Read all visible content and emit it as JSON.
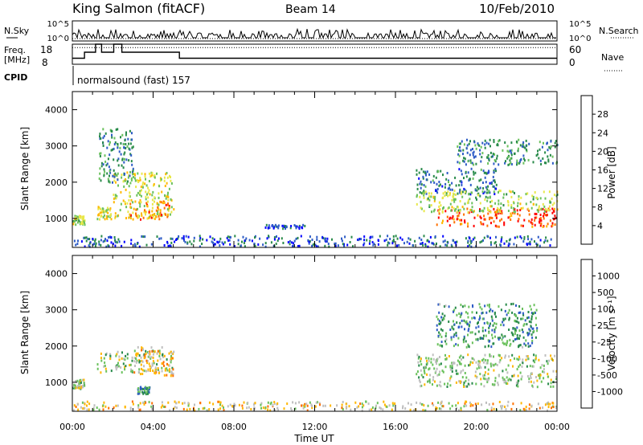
{
  "header": {
    "station": "King Salmon (fitACF)",
    "beam": "Beam 14",
    "date": "10/Feb/2010"
  },
  "side_labels": {
    "nsky": "N.Sky",
    "freq_line1": "Freq.",
    "freq_line2": "[MHz]",
    "cpid": "CPID",
    "nsearch": "N.Search",
    "nave": "Nave"
  },
  "cpid_text": "normalsound (fast) 157",
  "chart_data": [
    {
      "type": "line",
      "id": "noise-panel",
      "left_axis_ticks": [
        "10^5",
        "10^0"
      ],
      "right_axis_ticks": [
        "10^5",
        "10^0"
      ],
      "series": [
        {
          "name": "N.Sky"
        },
        {
          "name": "N.Search"
        }
      ]
    },
    {
      "type": "line",
      "id": "freq-panel",
      "left_axis_ticks": [
        "18",
        "8"
      ],
      "right_axis_ticks": [
        "60",
        "0"
      ],
      "ylim": [
        8,
        18
      ],
      "y2lim": [
        0,
        60
      ],
      "series": [
        {
          "name": "Freq. [MHz]",
          "x": [
            0.0,
            0.6,
            0.6,
            1.15,
            1.15,
            1.45,
            1.45,
            2.05,
            2.05,
            2.45,
            2.45,
            5.3,
            5.3,
            24.0
          ],
          "values": [
            11,
            11,
            14,
            14,
            18,
            18,
            14,
            14,
            18,
            18,
            14,
            14,
            11,
            11
          ]
        },
        {
          "name": "Nave",
          "y_const": 50
        }
      ]
    },
    {
      "type": "heatmap",
      "id": "power-panel",
      "xlabel": "",
      "ylabel": "Slant Range [km]",
      "ylim": [
        200,
        4500
      ],
      "y_ticks": [
        1000,
        2000,
        3000,
        4000
      ],
      "xlim": [
        0,
        24
      ],
      "colorbar": {
        "label": "Power [dB]",
        "ticks": [
          "28",
          "24",
          "20",
          "16",
          "12",
          "8",
          "4"
        ],
        "colors": [
          "#0000ff",
          "#2e5cc6",
          "#288a4a",
          "#6ac15c",
          "#e8e84a",
          "#ffb700",
          "#ff7000",
          "#ff0000"
        ]
      },
      "scatter_regions": [
        {
          "t": [
            0.0,
            0.6
          ],
          "r": [
            850,
            1100
          ],
          "level": 0.5
        },
        {
          "t": [
            1.2,
            1.9
          ],
          "r": [
            1000,
            1400
          ],
          "level": 0.55
        },
        {
          "t": [
            2.0,
            5.0
          ],
          "r": [
            1000,
            2300
          ],
          "level": 0.55
        },
        {
          "t": [
            2.8,
            4.8
          ],
          "r": [
            1000,
            1500
          ],
          "level": 0.78
        },
        {
          "t": [
            1.3,
            3.0
          ],
          "r": [
            2000,
            3500
          ],
          "level": 0.3
        },
        {
          "t": [
            9.5,
            11.5
          ],
          "r": [
            750,
            850
          ],
          "level": 0.15
        },
        {
          "t": [
            17.0,
            21.0
          ],
          "r": [
            1700,
            2400
          ],
          "level": 0.25
        },
        {
          "t": [
            18.0,
            24.0
          ],
          "r": [
            800,
            1300
          ],
          "level": 0.85
        },
        {
          "t": [
            17.0,
            24.0
          ],
          "r": [
            1200,
            1800
          ],
          "level": 0.5
        },
        {
          "t": [
            19.0,
            24.0
          ],
          "r": [
            2500,
            3200
          ],
          "level": 0.3
        },
        {
          "t": [
            0.0,
            24.0
          ],
          "r": [
            250,
            550
          ],
          "level": 0.2
        }
      ]
    },
    {
      "type": "heatmap",
      "id": "velocity-panel",
      "xlabel": "Time UT",
      "ylabel": "Slant Range [km]",
      "ylim": [
        200,
        4500
      ],
      "y_ticks": [
        1000,
        2000,
        3000,
        4000
      ],
      "xlim": [
        0,
        24
      ],
      "x_ticks": [
        "00:00",
        "04:00",
        "08:00",
        "12:00",
        "16:00",
        "20:00",
        "00:00"
      ],
      "colorbar": {
        "label": "Velocity [m s⁻¹]",
        "ticks": [
          "1000",
          "500",
          "100",
          "25",
          "-25",
          "-100",
          "-500",
          "-1000"
        ],
        "colors": [
          "#0000ff",
          "#2e5cc6",
          "#288a4a",
          "#6ac15c",
          "#bfbfbf",
          "#ffb700",
          "#ff7000",
          "#ff4000",
          "#ff0000"
        ]
      },
      "scatter_regions": [
        {
          "t": [
            0.0,
            0.6
          ],
          "r": [
            850,
            1100
          ],
          "level": 0.45
        },
        {
          "t": [
            1.2,
            5.0
          ],
          "r": [
            1300,
            1900
          ],
          "level": 0.45
        },
        {
          "t": [
            3.0,
            5.0
          ],
          "r": [
            1200,
            2000
          ],
          "level": 0.6
        },
        {
          "t": [
            3.2,
            3.8
          ],
          "r": [
            700,
            900
          ],
          "level": 0.3
        },
        {
          "t": [
            17.0,
            24.0
          ],
          "r": [
            900,
            1800
          ],
          "level": 0.45
        },
        {
          "t": [
            18.0,
            23.0
          ],
          "r": [
            2000,
            3200
          ],
          "level": 0.3
        },
        {
          "t": [
            0.0,
            24.0
          ],
          "r": [
            250,
            500
          ],
          "level": 0.55
        }
      ]
    }
  ]
}
